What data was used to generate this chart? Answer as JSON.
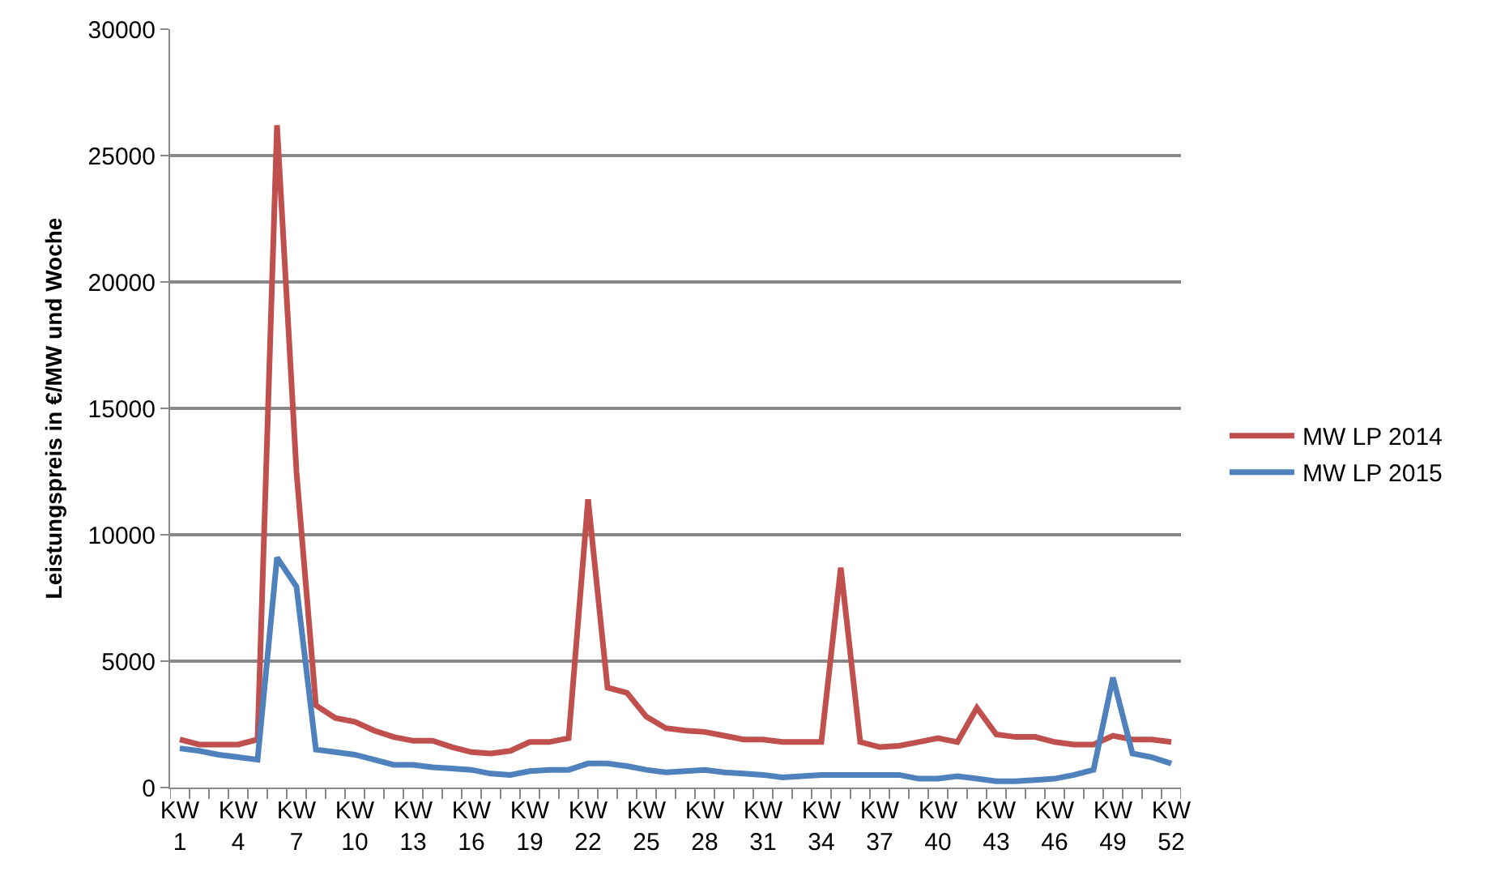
{
  "chart_data": {
    "type": "line",
    "ylabel": "Leistungspreis in €/MW und Woche",
    "categories": [
      "KW 1",
      null,
      null,
      "KW 4",
      null,
      null,
      "KW 7",
      null,
      null,
      "KW 10",
      null,
      null,
      "KW 13",
      null,
      null,
      "KW 16",
      null,
      null,
      "KW 19",
      null,
      null,
      "KW 22",
      null,
      null,
      "KW 25",
      null,
      null,
      "KW 28",
      null,
      null,
      "KW 31",
      null,
      null,
      "KW 34",
      null,
      null,
      "KW 37",
      null,
      null,
      "KW 40",
      null,
      null,
      "KW 43",
      null,
      null,
      "KW 46",
      null,
      null,
      "KW 49",
      null,
      null,
      "KW 52"
    ],
    "series": [
      {
        "name": "MW LP 2014",
        "color": "#c0504d",
        "values": [
          1900,
          1700,
          1700,
          1700,
          1900,
          26200,
          12500,
          3250,
          2750,
          2600,
          2250,
          2000,
          1850,
          1850,
          1600,
          1400,
          1350,
          1450,
          1800,
          1800,
          1950,
          11400,
          3950,
          3750,
          2800,
          2350,
          2250,
          2200,
          2050,
          1900,
          1900,
          1800,
          1800,
          1800,
          8700,
          1800,
          1600,
          1650,
          1800,
          1950,
          1800,
          3150,
          2100,
          2000,
          2000,
          1800,
          1700,
          1700,
          2050,
          1900,
          1900,
          1800
        ]
      },
      {
        "name": "MW LP 2015",
        "color": "#4f81bd",
        "values": [
          1550,
          1450,
          1300,
          1200,
          1100,
          9100,
          7950,
          1500,
          1400,
          1300,
          1100,
          900,
          900,
          800,
          750,
          700,
          550,
          500,
          650,
          700,
          700,
          950,
          950,
          850,
          700,
          600,
          650,
          700,
          600,
          550,
          500,
          400,
          450,
          500,
          500,
          500,
          500,
          500,
          350,
          350,
          450,
          350,
          250,
          250,
          300,
          350,
          500,
          700,
          4350,
          1350,
          1200,
          950
        ]
      }
    ],
    "ylim": [
      0,
      30000
    ],
    "yticks": [
      0,
      5000,
      10000,
      15000,
      20000,
      25000,
      30000
    ],
    "grid": "y",
    "legend": "right",
    "marker": "none",
    "line_style": "solid"
  }
}
